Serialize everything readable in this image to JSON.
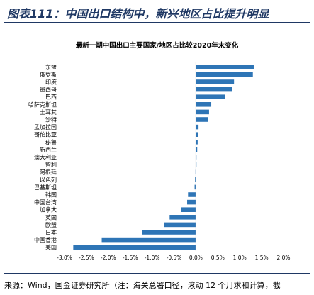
{
  "figure_title": "图表111：中国出口结构中，新兴地区占比提升明显",
  "source": "来源：Wind，国金证券研究所（注：海关总署口径，滚动 12 个月求和计算，截",
  "colors": {
    "bar": "#2e75b6",
    "title": "#1f3864",
    "axis": "#bfbfbf"
  },
  "chart_data": {
    "type": "bar",
    "orientation": "horizontal",
    "title": "最新一期中国出口主要国家/地区占比较2020年末变化",
    "categories": [
      "东盟",
      "俄罗斯",
      "印度",
      "墨西哥",
      "巴西",
      "哈萨克斯坦",
      "土耳其",
      "沙特",
      "孟加拉国",
      "哥伦比亚",
      "秘鲁",
      "新西兰",
      "澳大利亚",
      "智利",
      "阿根廷",
      "以色列",
      "巴基斯坦",
      "韩国",
      "中国台湾",
      "加拿大",
      "英国",
      "欧盟",
      "日本",
      "中国香港",
      "美国"
    ],
    "values": [
      1.32,
      1.3,
      0.87,
      0.82,
      0.67,
      0.35,
      0.3,
      0.28,
      0.06,
      0.05,
      0.04,
      0.03,
      0.01,
      0.01,
      -0.01,
      -0.02,
      -0.03,
      -0.18,
      -0.2,
      -0.33,
      -0.6,
      -0.72,
      -1.22,
      -2.15,
      -2.8
    ],
    "xlim": [
      -3.0,
      2.0
    ],
    "xticks": [
      "-3.0%",
      "-2.5%",
      "-2.0%",
      "-1.5%",
      "-1.0%",
      "-0.5%",
      "0.0%",
      "0.5%",
      "1.0%",
      "1.5%",
      "2.0%"
    ],
    "grid": false,
    "legend": "none"
  }
}
